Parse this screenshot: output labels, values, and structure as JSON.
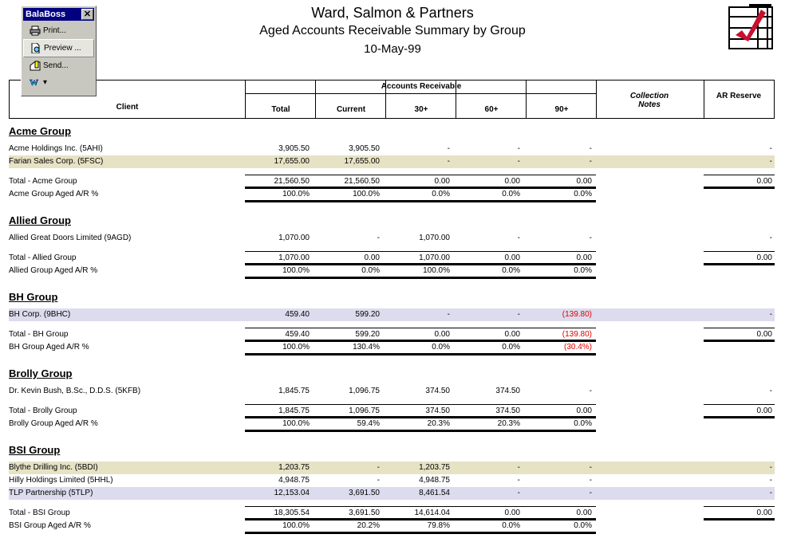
{
  "toolbar": {
    "title": "BalaBoss",
    "close": "✕",
    "items": [
      {
        "label": "Print...",
        "icon": "printer-icon"
      },
      {
        "label": "Preview ...",
        "icon": "preview-icon"
      },
      {
        "label": "Send...",
        "icon": "send-icon"
      },
      {
        "label": "▾",
        "icon": "word-icon"
      }
    ]
  },
  "report": {
    "company": "Ward, Salmon & Partners",
    "title": "Aged Accounts Receivable Summary by Group",
    "date": "10-May-99"
  },
  "columns": {
    "client": "Client",
    "ar_group": "Accounts Receivable",
    "total": "Total",
    "current": "Current",
    "d30": "30+",
    "d60": "60+",
    "d90": "90+",
    "notes": "Collection Notes",
    "reserve": "AR Reserve"
  },
  "colors": {
    "negative": "#e00000",
    "shade_yellow": "#e6e2c4",
    "shade_blue": "#dcdcee"
  },
  "groups": [
    {
      "name": "Acme Group",
      "rows": [
        {
          "client": "Acme Holdings Inc.  (5AHI)",
          "total": "3,905.50",
          "current": "3,905.50",
          "d30": "-",
          "d60": "-",
          "d90": "-",
          "reserve": "-",
          "shade": ""
        },
        {
          "client": "Farian Sales Corp.  (5FSC)",
          "total": "17,655.00",
          "current": "17,655.00",
          "d30": "-",
          "d60": "-",
          "d90": "-",
          "reserve": "-",
          "shade": "yel"
        }
      ],
      "total": {
        "label": "Total - Acme Group",
        "total": "21,560.50",
        "current": "21,560.50",
        "d30": "0.00",
        "d60": "0.00",
        "d90": "0.00",
        "reserve": "0.00"
      },
      "pct": {
        "label": "Acme Group Aged A/R %",
        "total": "100.0%",
        "current": "100.0%",
        "d30": "0.0%",
        "d60": "0.0%",
        "d90": "0.0%"
      }
    },
    {
      "name": "Allied Group",
      "rows": [
        {
          "client": "Allied Great Doors Limited  (9AGD)",
          "total": "1,070.00",
          "current": "-",
          "d30": "1,070.00",
          "d60": "-",
          "d90": "-",
          "reserve": "-",
          "shade": ""
        }
      ],
      "total": {
        "label": "Total - Allied Group",
        "total": "1,070.00",
        "current": "0.00",
        "d30": "1,070.00",
        "d60": "0.00",
        "d90": "0.00",
        "reserve": "0.00"
      },
      "pct": {
        "label": "Allied Group Aged A/R %",
        "total": "100.0%",
        "current": "0.0%",
        "d30": "100.0%",
        "d60": "0.0%",
        "d90": "0.0%"
      }
    },
    {
      "name": "BH Group",
      "rows": [
        {
          "client": "BH Corp.  (9BHC)",
          "total": "459.40",
          "current": "599.20",
          "d30": "-",
          "d60": "-",
          "d90": "(139.80)",
          "reserve": "-",
          "shade": "blu"
        }
      ],
      "total": {
        "label": "Total - BH Group",
        "total": "459.40",
        "current": "599.20",
        "d30": "0.00",
        "d60": "0.00",
        "d90": "(139.80)",
        "reserve": "0.00"
      },
      "pct": {
        "label": "BH Group Aged A/R %",
        "total": "100.0%",
        "current": "130.4%",
        "d30": "0.0%",
        "d60": "0.0%",
        "d90": "(30.4%)"
      }
    },
    {
      "name": "Brolly Group",
      "rows": [
        {
          "client": "Dr. Kevin Bush, B.Sc., D.D.S.  (5KFB)",
          "total": "1,845.75",
          "current": "1,096.75",
          "d30": "374.50",
          "d60": "374.50",
          "d90": "-",
          "reserve": "-",
          "shade": ""
        }
      ],
      "total": {
        "label": "Total - Brolly Group",
        "total": "1,845.75",
        "current": "1,096.75",
        "d30": "374.50",
        "d60": "374.50",
        "d90": "0.00",
        "reserve": "0.00"
      },
      "pct": {
        "label": "Brolly Group Aged A/R %",
        "total": "100.0%",
        "current": "59.4%",
        "d30": "20.3%",
        "d60": "20.3%",
        "d90": "0.0%"
      }
    },
    {
      "name": "BSI Group",
      "rows": [
        {
          "client": "Blythe Drilling Inc.  (5BDI)",
          "total": "1,203.75",
          "current": "-",
          "d30": "1,203.75",
          "d60": "-",
          "d90": "-",
          "reserve": "-",
          "shade": "yel"
        },
        {
          "client": "Hilly Holdings Limited  (5HHL)",
          "total": "4,948.75",
          "current": "-",
          "d30": "4,948.75",
          "d60": "-",
          "d90": "-",
          "reserve": "-",
          "shade": ""
        },
        {
          "client": "TLP Partnership  (5TLP)",
          "total": "12,153.04",
          "current": "3,691.50",
          "d30": "8,461.54",
          "d60": "-",
          "d90": "-",
          "reserve": "-",
          "shade": "blu"
        }
      ],
      "total": {
        "label": "Total - BSI Group",
        "total": "18,305.54",
        "current": "3,691.50",
        "d30": "14,614.04",
        "d60": "0.00",
        "d90": "0.00",
        "reserve": "0.00"
      },
      "pct": {
        "label": "BSI Group Aged A/R %",
        "total": "100.0%",
        "current": "20.2%",
        "d30": "79.8%",
        "d60": "0.0%",
        "d90": "0.0%"
      }
    }
  ]
}
